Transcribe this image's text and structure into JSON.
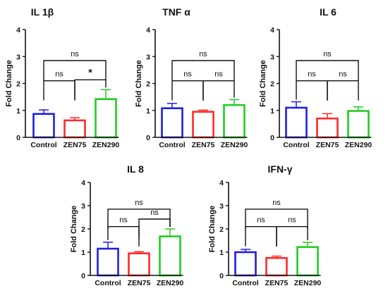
{
  "chart_data": [
    {
      "type": "bar",
      "title": "IL 1β",
      "ylabel": "Fold Change",
      "categories": [
        "Control",
        "ZEN75",
        "ZEN290"
      ],
      "values": [
        0.87,
        0.63,
        1.42
      ],
      "errors": [
        0.15,
        0.1,
        0.35
      ],
      "ylim": [
        0,
        4
      ],
      "yticks": [
        "0",
        "1",
        "2",
        "3",
        "4"
      ],
      "colors": [
        "#1f1fe0",
        "#ff2a2a",
        "#22cc22"
      ],
      "significance": [
        {
          "from": 0,
          "to": 2,
          "label": "ns",
          "level": 2
        },
        {
          "from": 0,
          "to": 1,
          "label": "ns",
          "level": 1
        },
        {
          "from": 1,
          "to": 2,
          "label": "*",
          "level": 1
        }
      ]
    },
    {
      "type": "bar",
      "title": "TNF α",
      "ylabel": "Fold Change",
      "categories": [
        "Control",
        "ZEN75",
        "ZEN290"
      ],
      "values": [
        1.08,
        0.95,
        1.2
      ],
      "errors": [
        0.18,
        0.06,
        0.2
      ],
      "ylim": [
        0,
        4
      ],
      "yticks": [
        "0",
        "1",
        "2",
        "3",
        "4"
      ],
      "colors": [
        "#1f1fe0",
        "#ff2a2a",
        "#22cc22"
      ],
      "significance": [
        {
          "from": 0,
          "to": 2,
          "label": "ns",
          "level": 2
        },
        {
          "from": 0,
          "to": 1,
          "label": "ns",
          "level": 1
        },
        {
          "from": 1,
          "to": 2,
          "label": "ns",
          "level": 1
        }
      ]
    },
    {
      "type": "bar",
      "title": "IL 6",
      "ylabel": "Fold Change",
      "categories": [
        "Control",
        "ZEN75",
        "ZEN290"
      ],
      "values": [
        1.1,
        0.7,
        0.98
      ],
      "errors": [
        0.22,
        0.18,
        0.15
      ],
      "ylim": [
        0,
        4
      ],
      "yticks": [
        "0",
        "1",
        "2",
        "3",
        "4"
      ],
      "colors": [
        "#1f1fe0",
        "#ff2a2a",
        "#22cc22"
      ],
      "significance": [
        {
          "from": 0,
          "to": 2,
          "label": "ns",
          "level": 2
        },
        {
          "from": 0,
          "to": 1,
          "label": "ns",
          "level": 1
        },
        {
          "from": 1,
          "to": 2,
          "label": "ns",
          "level": 1
        }
      ]
    },
    {
      "type": "bar",
      "title": "IL 8",
      "ylabel": "Fold Change",
      "categories": [
        "Control",
        "ZEN75",
        "ZEN290"
      ],
      "values": [
        1.15,
        0.95,
        1.68
      ],
      "errors": [
        0.28,
        0.07,
        0.32
      ],
      "ylim": [
        0,
        4
      ],
      "yticks": [
        "0",
        "1",
        "2",
        "3",
        "4"
      ],
      "colors": [
        "#1f1fe0",
        "#ff2a2a",
        "#22cc22"
      ],
      "significance": [
        {
          "from": 0,
          "to": 2,
          "label": "ns",
          "level": 2
        },
        {
          "from": 0,
          "to": 1,
          "label": "ns",
          "level": 1
        },
        {
          "from": 1,
          "to": 2,
          "label": "ns",
          "level": 1
        }
      ]
    },
    {
      "type": "bar",
      "title": "IFN-γ",
      "ylabel": "Fold Change",
      "categories": [
        "Control",
        "ZEN75",
        "ZEN290"
      ],
      "values": [
        1.0,
        0.75,
        1.22
      ],
      "errors": [
        0.12,
        0.08,
        0.2
      ],
      "ylim": [
        0,
        4
      ],
      "yticks": [
        "0",
        "1",
        "2",
        "3",
        "4"
      ],
      "colors": [
        "#1f1fe0",
        "#ff2a2a",
        "#22cc22"
      ],
      "significance": [
        {
          "from": 0,
          "to": 2,
          "label": "ns",
          "level": 2
        },
        {
          "from": 0,
          "to": 1,
          "label": "ns",
          "level": 1
        },
        {
          "from": 1,
          "to": 2,
          "label": "ns",
          "level": 1
        }
      ]
    }
  ]
}
